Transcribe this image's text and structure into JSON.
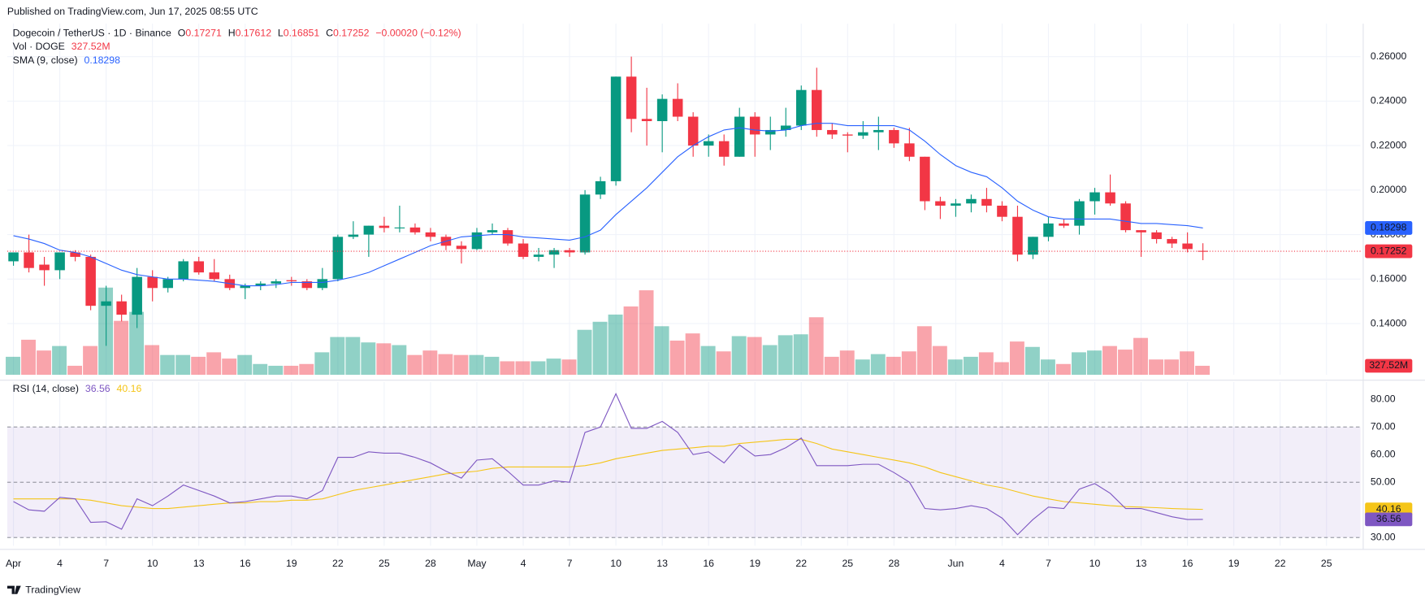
{
  "header": {
    "published": "Published on TradingView.com, Jun 17, 2025 08:55 UTC"
  },
  "chart_data": {
    "type": "candlestick",
    "title": "Dogecoin / TetherUS · 1D · Binance",
    "ohlc_labels": [
      "O",
      "H",
      "L",
      "C"
    ],
    "change": "−0.00020 (−0.12%)",
    "up_color": "#089981",
    "down_color": "#f23645",
    "grid": true,
    "xlim": [
      -0.4,
      87.2
    ],
    "xticks": [
      {
        "value": 0,
        "label": "Apr"
      },
      {
        "value": 3,
        "label": "4"
      },
      {
        "value": 6,
        "label": "7"
      },
      {
        "value": 9,
        "label": "10"
      },
      {
        "value": 12,
        "label": "13"
      },
      {
        "value": 15,
        "label": "16"
      },
      {
        "value": 18,
        "label": "19"
      },
      {
        "value": 21,
        "label": "22"
      },
      {
        "value": 24,
        "label": "25"
      },
      {
        "value": 27,
        "label": "28"
      },
      {
        "value": 30,
        "label": "May"
      },
      {
        "value": 33,
        "label": "4"
      },
      {
        "value": 36,
        "label": "7"
      },
      {
        "value": 39,
        "label": "10"
      },
      {
        "value": 42,
        "label": "13"
      },
      {
        "value": 45,
        "label": "16"
      },
      {
        "value": 48,
        "label": "19"
      },
      {
        "value": 51,
        "label": "22"
      },
      {
        "value": 54,
        "label": "25"
      },
      {
        "value": 57,
        "label": "28"
      },
      {
        "value": 61,
        "label": "Jun"
      },
      {
        "value": 64,
        "label": "4"
      },
      {
        "value": 67,
        "label": "7"
      },
      {
        "value": 70,
        "label": "10"
      },
      {
        "value": 73,
        "label": "13"
      },
      {
        "value": 76,
        "label": "16"
      },
      {
        "value": 79,
        "label": "19"
      },
      {
        "value": 82,
        "label": "22"
      },
      {
        "value": 85,
        "label": "25"
      }
    ],
    "ylim": [
      0.117,
      0.265
    ],
    "yticks": [
      {
        "value": 0.26,
        "label": "0.26000"
      },
      {
        "value": 0.24,
        "label": "0.24000"
      },
      {
        "value": 0.22,
        "label": "0.22000"
      },
      {
        "value": 0.2,
        "label": "0.20000"
      },
      {
        "value": 0.18,
        "label": "0.18000"
      },
      {
        "value": 0.16,
        "label": "0.16000"
      },
      {
        "value": 0.14,
        "label": "0.14000"
      }
    ],
    "open": [
      0.168,
      0.172,
      0.1665,
      0.164,
      0.172,
      0.17,
      0.148,
      0.15,
      0.144,
      0.161,
      0.156,
      0.16,
      0.168,
      0.163,
      0.16,
      0.156,
      0.157,
      0.158,
      0.1595,
      0.159,
      0.156,
      0.16,
      0.179,
      0.18,
      0.184,
      0.183,
      0.1832,
      0.181,
      0.179,
      0.175,
      0.1735,
      0.181,
      0.182,
      0.176,
      0.17,
      0.171,
      0.173,
      0.172,
      0.198,
      0.204,
      0.251,
      0.232,
      0.231,
      0.241,
      0.233,
      0.22,
      0.222,
      0.215,
      0.233,
      0.225,
      0.227,
      0.229,
      0.245,
      0.227,
      0.225,
      0.2245,
      0.226,
      0.227,
      0.221,
      0.215,
      0.195,
      0.193,
      0.194,
      0.196,
      0.193,
      0.188,
      0.171,
      0.179,
      0.185,
      0.184,
      0.195,
      0.199,
      0.194,
      0.182,
      0.181,
      0.178,
      0.176,
      0.17271
    ],
    "high": [
      0.172,
      0.18,
      0.17,
      0.172,
      0.173,
      0.171,
      0.157,
      0.153,
      0.165,
      0.164,
      0.161,
      0.169,
      0.17,
      0.169,
      0.162,
      0.158,
      0.159,
      0.16,
      0.161,
      0.16,
      0.165,
      0.18,
      0.186,
      0.184,
      0.188,
      0.193,
      0.185,
      0.183,
      0.18,
      0.177,
      0.183,
      0.185,
      0.183,
      0.178,
      0.174,
      0.174,
      0.174,
      0.2,
      0.206,
      0.251,
      0.26,
      0.246,
      0.243,
      0.248,
      0.235,
      0.225,
      0.225,
      0.237,
      0.235,
      0.233,
      0.237,
      0.247,
      0.255,
      0.23,
      0.226,
      0.231,
      0.233,
      0.228,
      0.228,
      0.215,
      0.197,
      0.196,
      0.198,
      0.201,
      0.195,
      0.193,
      0.179,
      0.188,
      0.187,
      0.196,
      0.201,
      0.207,
      0.195,
      0.182,
      0.182,
      0.179,
      0.181,
      0.17612
    ],
    "low": [
      0.166,
      0.163,
      0.157,
      0.16,
      0.168,
      0.146,
      0.13,
      0.141,
      0.138,
      0.15,
      0.154,
      0.159,
      0.162,
      0.159,
      0.155,
      0.151,
      0.155,
      0.156,
      0.157,
      0.155,
      0.155,
      0.159,
      0.178,
      0.17,
      0.181,
      0.181,
      0.18,
      0.177,
      0.173,
      0.167,
      0.173,
      0.18,
      0.175,
      0.169,
      0.168,
      0.165,
      0.17,
      0.171,
      0.196,
      0.202,
      0.226,
      0.22,
      0.217,
      0.231,
      0.215,
      0.215,
      0.211,
      0.215,
      0.215,
      0.218,
      0.224,
      0.227,
      0.224,
      0.223,
      0.217,
      0.223,
      0.218,
      0.219,
      0.213,
      0.191,
      0.187,
      0.188,
      0.19,
      0.19,
      0.186,
      0.168,
      0.169,
      0.177,
      0.183,
      0.18,
      0.189,
      0.193,
      0.181,
      0.17,
      0.176,
      0.174,
      0.172,
      0.16851
    ],
    "close": [
      0.172,
      0.165,
      0.164,
      0.172,
      0.17,
      0.148,
      0.15,
      0.144,
      0.161,
      0.156,
      0.16,
      0.168,
      0.163,
      0.16,
      0.156,
      0.157,
      0.158,
      0.159,
      0.159,
      0.156,
      0.16,
      0.179,
      0.18,
      0.184,
      0.183,
      0.1832,
      0.181,
      0.179,
      0.175,
      0.1735,
      0.181,
      0.182,
      0.176,
      0.17,
      0.171,
      0.173,
      0.172,
      0.198,
      0.204,
      0.251,
      0.232,
      0.231,
      0.241,
      0.233,
      0.22,
      0.222,
      0.215,
      0.233,
      0.225,
      0.227,
      0.229,
      0.245,
      0.227,
      0.225,
      0.2245,
      0.226,
      0.227,
      0.221,
      0.215,
      0.195,
      0.193,
      0.194,
      0.196,
      0.193,
      0.188,
      0.171,
      0.179,
      0.185,
      0.184,
      0.195,
      0.199,
      0.194,
      0.182,
      0.181,
      0.178,
      0.176,
      0.1735,
      0.17252
    ],
    "series": [
      {
        "name": "SMA (9, close)",
        "color": "#2962ff",
        "values": [
          0.1795,
          0.178,
          0.176,
          0.173,
          0.172,
          0.17,
          0.167,
          0.164,
          0.162,
          0.161,
          0.16,
          0.16,
          0.1595,
          0.159,
          0.158,
          0.157,
          0.157,
          0.1575,
          0.1585,
          0.1585,
          0.1585,
          0.1595,
          0.161,
          0.163,
          0.166,
          0.169,
          0.172,
          0.175,
          0.177,
          0.179,
          0.1795,
          0.18,
          0.18,
          0.179,
          0.1785,
          0.178,
          0.1775,
          0.179,
          0.182,
          0.189,
          0.195,
          0.201,
          0.208,
          0.215,
          0.22,
          0.224,
          0.227,
          0.228,
          0.227,
          0.2265,
          0.227,
          0.229,
          0.23,
          0.23,
          0.229,
          0.229,
          0.229,
          0.229,
          0.227,
          0.222,
          0.216,
          0.211,
          0.208,
          0.206,
          0.201,
          0.195,
          0.191,
          0.188,
          0.187,
          0.187,
          0.187,
          0.187,
          0.186,
          0.185,
          0.185,
          0.1845,
          0.184,
          0.18298
        ]
      }
    ],
    "volume": {
      "name": "Vol · DOGE",
      "last_label": "327.52M",
      "ylim": [
        0,
        12000
      ],
      "values": [
        655,
        1277,
        884,
        1048,
        328,
        1048,
        3177,
        1965,
        2293,
        1081,
        721,
        721,
        655,
        819,
        590,
        721,
        393,
        328,
        328,
        393,
        819,
        1376,
        1376,
        1179,
        1146,
        1081,
        721,
        884,
        753,
        721,
        721,
        655,
        491,
        491,
        491,
        590,
        557,
        1638,
        1932,
        2194,
        2489,
        3079,
        1769,
        1245,
        1507,
        1048,
        852,
        1408,
        1376,
        1081,
        1441,
        1474,
        2096,
        655,
        884,
        557,
        753,
        655,
        852,
        1769,
        1048,
        557,
        655,
        819,
        459,
        1212,
        1015,
        557,
        393,
        819,
        884,
        1048,
        917,
        1343,
        557,
        557,
        852,
        327.52
      ]
    },
    "rsi": {
      "name": "RSI (14, close)",
      "color": "#7e57c2",
      "ylim": [
        27,
        86.25
      ],
      "overbought": 70,
      "middle": 50,
      "oversold": 30,
      "yticks": [
        {
          "value": 80,
          "label": "80.00"
        },
        {
          "value": 70,
          "label": "70.00"
        },
        {
          "value": 60,
          "label": "60.00"
        },
        {
          "value": 50,
          "label": "50.00"
        },
        {
          "value": 40,
          "label": "40.00"
        },
        {
          "value": 30,
          "label": "30.00"
        }
      ],
      "values": [
        43,
        40,
        39.5,
        44.5,
        44,
        35.5,
        35.7,
        33,
        44,
        41.5,
        45,
        49,
        47,
        45,
        42.5,
        43,
        44,
        45,
        45,
        44,
        47,
        59,
        59,
        61,
        60.5,
        60.5,
        59,
        57,
        54,
        51.5,
        58,
        58.5,
        54,
        49,
        49,
        50.5,
        50,
        68,
        70,
        82,
        69.5,
        69.5,
        72,
        68,
        60,
        61,
        57,
        63.5,
        59.5,
        60,
        62.5,
        66,
        56,
        56,
        56,
        56.5,
        56.5,
        53.5,
        50,
        40.5,
        40,
        40.5,
        41.5,
        40.5,
        37,
        31,
        36.5,
        41,
        40.5,
        47.5,
        49.5,
        46,
        40.5,
        40.5,
        39,
        37.5,
        36.5,
        36.56
      ],
      "ma": {
        "color": "#f5c518",
        "values": [
          44,
          44,
          44,
          44,
          44,
          43.5,
          42.5,
          41.5,
          41,
          40.5,
          40.5,
          41,
          41.5,
          42,
          42.5,
          42.5,
          43,
          43,
          43.5,
          43.5,
          44,
          45.5,
          47,
          48,
          49,
          50,
          51,
          52,
          53,
          53.5,
          54,
          55,
          55.5,
          55.5,
          55.5,
          55.5,
          55.5,
          56,
          57,
          58.5,
          59.5,
          60.5,
          61.5,
          62,
          62.5,
          63,
          63,
          64,
          64.5,
          65,
          65.5,
          65.5,
          64,
          62,
          61,
          60,
          59,
          58,
          57,
          55.5,
          53.5,
          52,
          50.5,
          49,
          48,
          46.5,
          45,
          44,
          43,
          42.5,
          42,
          41.5,
          41.2,
          41,
          40.8,
          40.5,
          40.3,
          40.16
        ]
      }
    }
  },
  "footer": {
    "brand": "TradingView"
  }
}
